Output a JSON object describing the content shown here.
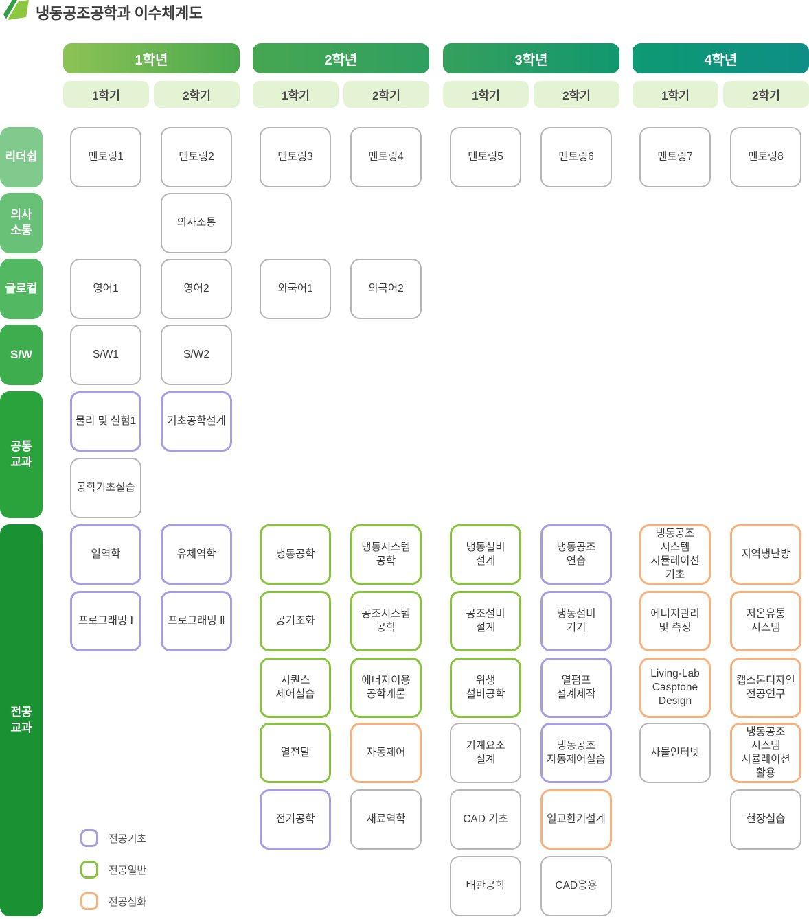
{
  "title": "냉동공조공학과 이수체계도",
  "years": [
    {
      "label": "1학년",
      "grad_from": "#8dc355",
      "grad_to": "#49a84e",
      "semesters": [
        "1학기",
        "2학기"
      ]
    },
    {
      "label": "2학년",
      "grad_from": "#46a751",
      "grad_to": "#2f9f60",
      "semesters": [
        "1학기",
        "2학기"
      ]
    },
    {
      "label": "3학년",
      "grad_from": "#36a05c",
      "grad_to": "#11976f",
      "semesters": [
        "1학기",
        "2학기"
      ]
    },
    {
      "label": "4학년",
      "grad_from": "#0e9a72",
      "grad_to": "#0e8e86",
      "semesters": [
        "1학기",
        "2학기"
      ]
    }
  ],
  "categories": [
    {
      "label": "리더쉽",
      "color": "#7fca8c",
      "row_start": 1,
      "row_end": 1
    },
    {
      "label": "의사\n소통",
      "color": "#68c177",
      "row_start": 2,
      "row_end": 2
    },
    {
      "label": "글로컬",
      "color": "#52b861",
      "row_start": 3,
      "row_end": 3
    },
    {
      "label": "S/W",
      "color": "#3dad4d",
      "row_start": 4,
      "row_end": 4
    },
    {
      "label": "공통\n교과",
      "color": "#2aa33c",
      "row_start": 5,
      "row_end": 6
    },
    {
      "label": "전공\n교과",
      "color": "#1a9133",
      "row_start": 7,
      "row_end": 12
    }
  ],
  "course_types": {
    "plain": {
      "border": "#b5b5b5"
    },
    "basic": {
      "border": "#a89ce5",
      "label": "전공기초"
    },
    "general": {
      "border": "#86c43c",
      "label": "전공일반"
    },
    "advanced": {
      "border": "#f6b17c",
      "label": "전공심화"
    }
  },
  "legend": [
    {
      "type": "basic",
      "label": "전공기초"
    },
    {
      "type": "general",
      "label": "전공일반"
    },
    {
      "type": "advanced",
      "label": "전공심화"
    }
  ],
  "courses": [
    {
      "label": "멘토링1",
      "row": 1,
      "col": 1,
      "type": "plain"
    },
    {
      "label": "멘토링2",
      "row": 1,
      "col": 2,
      "type": "plain"
    },
    {
      "label": "멘토링3",
      "row": 1,
      "col": 3,
      "type": "plain"
    },
    {
      "label": "멘토링4",
      "row": 1,
      "col": 4,
      "type": "plain"
    },
    {
      "label": "멘토링5",
      "row": 1,
      "col": 5,
      "type": "plain"
    },
    {
      "label": "멘토링6",
      "row": 1,
      "col": 6,
      "type": "plain"
    },
    {
      "label": "멘토링7",
      "row": 1,
      "col": 7,
      "type": "plain"
    },
    {
      "label": "멘토링8",
      "row": 1,
      "col": 8,
      "type": "plain"
    },
    {
      "label": "의사소통",
      "row": 2,
      "col": 2,
      "type": "plain"
    },
    {
      "label": "영어1",
      "row": 3,
      "col": 1,
      "type": "plain"
    },
    {
      "label": "영어2",
      "row": 3,
      "col": 2,
      "type": "plain"
    },
    {
      "label": "외국어1",
      "row": 3,
      "col": 3,
      "type": "plain"
    },
    {
      "label": "외국어2",
      "row": 3,
      "col": 4,
      "type": "plain"
    },
    {
      "label": "S/W1",
      "row": 4,
      "col": 1,
      "type": "plain"
    },
    {
      "label": "S/W2",
      "row": 4,
      "col": 2,
      "type": "plain"
    },
    {
      "label": "물리 및 실험1",
      "row": 5,
      "col": 1,
      "type": "basic"
    },
    {
      "label": "기초공학설계",
      "row": 5,
      "col": 2,
      "type": "basic"
    },
    {
      "label": "공학기초실습",
      "row": 6,
      "col": 1,
      "type": "plain"
    },
    {
      "label": "열역학",
      "row": 7,
      "col": 1,
      "type": "basic"
    },
    {
      "label": "유체역학",
      "row": 7,
      "col": 2,
      "type": "basic"
    },
    {
      "label": "냉동공학",
      "row": 7,
      "col": 3,
      "type": "general"
    },
    {
      "label": "냉동시스템\n공학",
      "row": 7,
      "col": 4,
      "type": "general"
    },
    {
      "label": "냉동설비\n설계",
      "row": 7,
      "col": 5,
      "type": "general"
    },
    {
      "label": "냉동공조\n연습",
      "row": 7,
      "col": 6,
      "type": "basic"
    },
    {
      "label": "냉동공조\n시스템\n시뮬레이션\n기초",
      "row": 7,
      "col": 7,
      "type": "advanced"
    },
    {
      "label": "지역냉난방",
      "row": 7,
      "col": 8,
      "type": "advanced"
    },
    {
      "label": "프로그래밍 Ⅰ",
      "row": 8,
      "col": 1,
      "type": "basic"
    },
    {
      "label": "프로그래밍 Ⅱ",
      "row": 8,
      "col": 2,
      "type": "basic"
    },
    {
      "label": "공기조화",
      "row": 8,
      "col": 3,
      "type": "general"
    },
    {
      "label": "공조시스템\n공학",
      "row": 8,
      "col": 4,
      "type": "general"
    },
    {
      "label": "공조설비\n설계",
      "row": 8,
      "col": 5,
      "type": "general"
    },
    {
      "label": "냉동설비\n기기",
      "row": 8,
      "col": 6,
      "type": "basic"
    },
    {
      "label": "에너지관리\n및 측정",
      "row": 8,
      "col": 7,
      "type": "advanced"
    },
    {
      "label": "저온유통\n시스템",
      "row": 8,
      "col": 8,
      "type": "advanced"
    },
    {
      "label": "시퀀스\n제어실습",
      "row": 9,
      "col": 3,
      "type": "general"
    },
    {
      "label": "에너지이용\n공학개론",
      "row": 9,
      "col": 4,
      "type": "general"
    },
    {
      "label": "위생\n설비공학",
      "row": 9,
      "col": 5,
      "type": "general"
    },
    {
      "label": "열펌프\n설계제작",
      "row": 9,
      "col": 6,
      "type": "basic"
    },
    {
      "label": "Living-Lab\nCasptone\nDesign",
      "row": 9,
      "col": 7,
      "type": "advanced"
    },
    {
      "label": "캡스톤디자인\n전공연구",
      "row": 9,
      "col": 8,
      "type": "advanced"
    },
    {
      "label": "열전달",
      "row": 10,
      "col": 3,
      "type": "general"
    },
    {
      "label": "자동제어",
      "row": 10,
      "col": 4,
      "type": "advanced"
    },
    {
      "label": "기계요소\n설계",
      "row": 10,
      "col": 5,
      "type": "plain"
    },
    {
      "label": "냉동공조\n자동제어실습",
      "row": 10,
      "col": 6,
      "type": "basic"
    },
    {
      "label": "사물인터넷",
      "row": 10,
      "col": 7,
      "type": "plain"
    },
    {
      "label": "냉동공조\n시스템\n시뮬레이션\n활용",
      "row": 10,
      "col": 8,
      "type": "advanced"
    },
    {
      "label": "전기공학",
      "row": 11,
      "col": 3,
      "type": "basic"
    },
    {
      "label": "재료역학",
      "row": 11,
      "col": 4,
      "type": "plain"
    },
    {
      "label": "CAD 기초",
      "row": 11,
      "col": 5,
      "type": "plain"
    },
    {
      "label": "열교환기설계",
      "row": 11,
      "col": 6,
      "type": "advanced"
    },
    {
      "label": "현장실습",
      "row": 11,
      "col": 8,
      "type": "plain"
    },
    {
      "label": "배관공학",
      "row": 12,
      "col": 5,
      "type": "plain"
    },
    {
      "label": "CAD응용",
      "row": 12,
      "col": 6,
      "type": "plain"
    }
  ],
  "logo_colors": {
    "light": "#8dc63f",
    "dark": "#2f9e44"
  }
}
